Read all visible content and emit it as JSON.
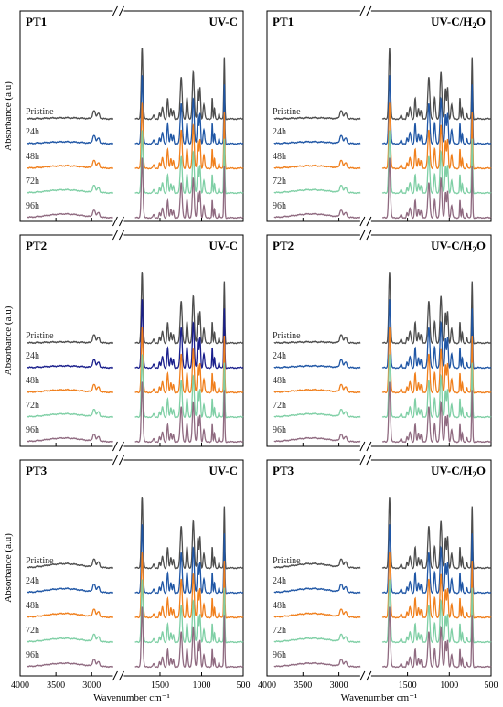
{
  "figure": {
    "ylabel": "Absorbance (a.u)",
    "xlabel": "Wavenumber cm⁻¹",
    "xticks": [
      "4000",
      "3500",
      "3000",
      "1500",
      "1000",
      "500"
    ]
  },
  "colors": {
    "Pristine": "#4d4d4d",
    "24h": "#1f56a5",
    "24h_dark": "#1a1f8c",
    "48h": "#f07f1c",
    "72h": "#7fcfa5",
    "96h": "#8f6a80"
  },
  "chart_data": [
    {
      "type": "line",
      "panel_label": "PT1",
      "condition": "UV-C",
      "series": [
        {
          "name": "Pristine"
        },
        {
          "name": "24h"
        },
        {
          "name": "48h"
        },
        {
          "name": "72h"
        },
        {
          "name": "96h"
        }
      ],
      "xlim": [
        4000,
        500
      ],
      "x_axis_break": true,
      "grid": false
    },
    {
      "type": "line",
      "panel_label": "PT1",
      "condition": "UV-C/H₂O",
      "series": [
        {
          "name": "Pristine"
        },
        {
          "name": "24h"
        },
        {
          "name": "48h"
        },
        {
          "name": "72h"
        },
        {
          "name": "96h"
        }
      ],
      "xlim": [
        4000,
        500
      ],
      "x_axis_break": true,
      "grid": false
    },
    {
      "type": "line",
      "panel_label": "PT2",
      "condition": "UV-C",
      "series": [
        {
          "name": "Pristine"
        },
        {
          "name": "24h"
        },
        {
          "name": "48h"
        },
        {
          "name": "72h"
        },
        {
          "name": "96h"
        }
      ],
      "xlim": [
        4000,
        500
      ],
      "x_axis_break": true,
      "grid": false
    },
    {
      "type": "line",
      "panel_label": "PT2",
      "condition": "UV-C/H₂O",
      "series": [
        {
          "name": "Pristine"
        },
        {
          "name": "24h"
        },
        {
          "name": "48h"
        },
        {
          "name": "72h"
        },
        {
          "name": "96h"
        }
      ],
      "xlim": [
        4000,
        500
      ],
      "x_axis_break": true,
      "grid": false
    },
    {
      "type": "line",
      "panel_label": "PT3",
      "condition": "UV-C",
      "series": [
        {
          "name": "Pristine"
        },
        {
          "name": "24h"
        },
        {
          "name": "48h"
        },
        {
          "name": "72h"
        },
        {
          "name": "96h"
        }
      ],
      "xlim": [
        4000,
        500
      ],
      "x_axis_break": true,
      "grid": false
    },
    {
      "type": "line",
      "panel_label": "PT3",
      "condition": "UV-C/H₂O",
      "series": [
        {
          "name": "Pristine"
        },
        {
          "name": "24h"
        },
        {
          "name": "48h"
        },
        {
          "name": "72h"
        },
        {
          "name": "96h"
        }
      ],
      "xlim": [
        4000,
        500
      ],
      "x_axis_break": true,
      "grid": false
    }
  ]
}
